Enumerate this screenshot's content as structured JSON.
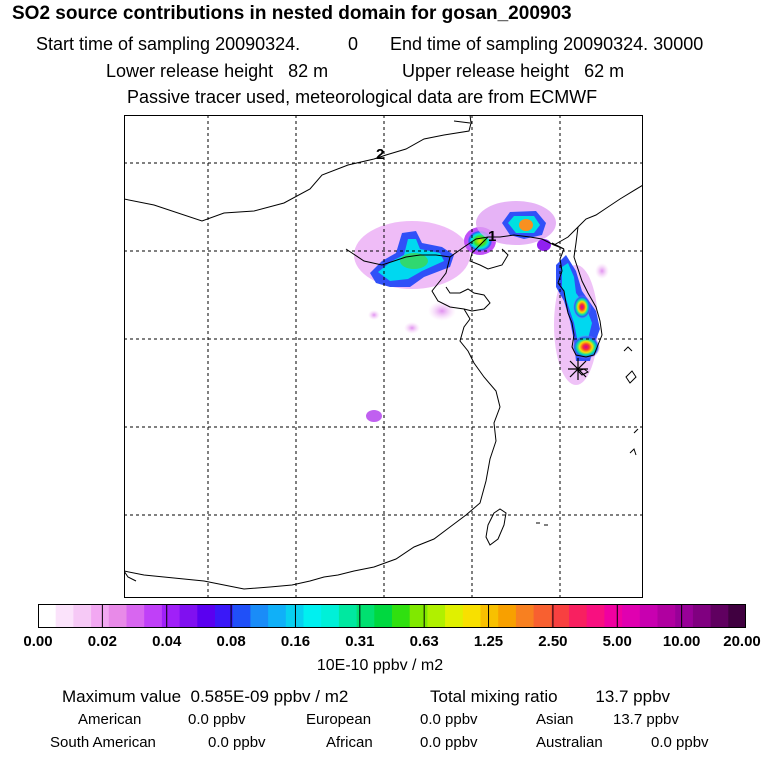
{
  "chart_data": {
    "type": "heatmap",
    "title": "SO2 source contributions in nested domain for gosan_200903",
    "subtitle_lines": {
      "start_label": "Start time of sampling 20090324.",
      "start_value": "0",
      "end_label": "End time of sampling 20090324. 30000",
      "lower_release": "Lower release height   82 m",
      "upper_release": "Upper release height   62 m",
      "tracer_note": "Passive tracer used, meteorological data are from ECMWF"
    },
    "map_labels": [
      "2",
      "1"
    ],
    "receptor": "gosan",
    "colorbar": {
      "ticks": [
        "0.00",
        "0.02",
        "0.04",
        "0.08",
        "0.16",
        "0.31",
        "0.63",
        "1.25",
        "2.50",
        "5.00",
        "10.00",
        "20.00"
      ],
      "units": "10E-10 ppbv / m2",
      "colors": [
        "#ffffff",
        "#fbe3fb",
        "#f6c9f6",
        "#f2a8f2",
        "#e88ae8",
        "#d866f0",
        "#c040f8",
        "#a020f8",
        "#8010f0",
        "#5a00f0",
        "#3a18f8",
        "#2050f8",
        "#1a8cf8",
        "#10b0f8",
        "#08d0f0",
        "#00f0f0",
        "#00f0d8",
        "#00e8a0",
        "#00e070",
        "#00d840",
        "#30e010",
        "#80e800",
        "#b0f000",
        "#e0f000",
        "#f8e000",
        "#f8c000",
        "#f8a000",
        "#f88020",
        "#f86030",
        "#f84040",
        "#f82060",
        "#f81080",
        "#f000a0",
        "#e000b0",
        "#c800b0",
        "#b000a0",
        "#980098",
        "#800080",
        "#600060",
        "#400040"
      ]
    },
    "summary": {
      "max_label": "Maximum value",
      "max_value": "0.585E-09 ppbv / m2",
      "total_label": "Total mixing ratio",
      "total_value": "13.7 ppbv"
    },
    "regions": [
      {
        "name": "American",
        "value": "0.0 ppbv"
      },
      {
        "name": "European",
        "value": "0.0 ppbv"
      },
      {
        "name": "Asian",
        "value": "13.7 ppbv"
      },
      {
        "name": "South American",
        "value": "0.0 ppbv"
      },
      {
        "name": "African",
        "value": "0.0 ppbv"
      },
      {
        "name": "Australian",
        "value": "0.0 ppbv"
      }
    ]
  }
}
